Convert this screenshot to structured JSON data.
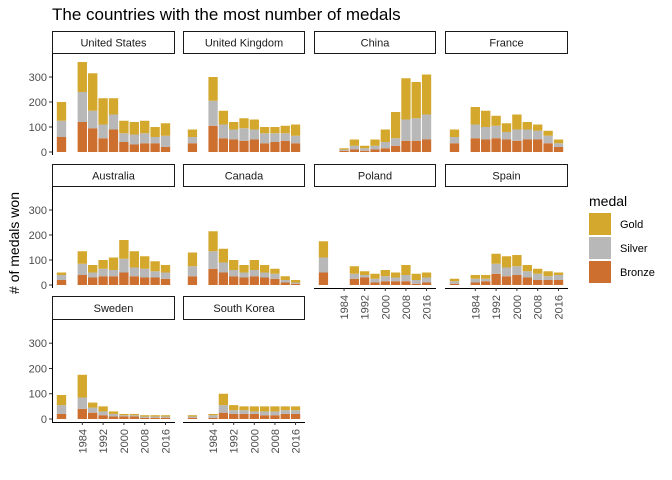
{
  "chart_data": {
    "type": "bar",
    "title": "The countries with the most number of medals",
    "xlabel": "",
    "ylabel": "# of medals won",
    "ylim": [
      0,
      380
    ],
    "y_ticks": [
      0,
      100,
      200,
      300
    ],
    "x": [
      1976,
      1980,
      1984,
      1988,
      1992,
      1996,
      2000,
      2004,
      2008,
      2012,
      2016
    ],
    "x_tick_labels": [
      "1984",
      "1992",
      "2000",
      "2008",
      "2016"
    ],
    "stack_order": [
      "Bronze",
      "Silver",
      "Gold"
    ],
    "legend": {
      "title": "medal",
      "position": "right",
      "entries": [
        {
          "label": "Gold",
          "color": "#d4a82c"
        },
        {
          "label": "Silver",
          "color": "#b8b8b8"
        },
        {
          "label": "Bronze",
          "color": "#cd6f2e"
        }
      ]
    },
    "grid": false,
    "facets": [
      {
        "name": "United States",
        "bronze": [
          60,
          0,
          120,
          95,
          55,
          90,
          40,
          30,
          35,
          35,
          20
        ],
        "silver": [
          65,
          0,
          120,
          70,
          55,
          60,
          35,
          40,
          40,
          25,
          45
        ],
        "gold": [
          75,
          0,
          120,
          150,
          105,
          65,
          50,
          50,
          50,
          40,
          50
        ]
      },
      {
        "name": "United Kingdom",
        "bronze": [
          35,
          0,
          105,
          55,
          50,
          45,
          50,
          35,
          40,
          45,
          35
        ],
        "silver": [
          25,
          0,
          100,
          55,
          40,
          50,
          40,
          40,
          35,
          30,
          30
        ],
        "gold": [
          30,
          0,
          95,
          55,
          30,
          40,
          40,
          25,
          25,
          30,
          45
        ]
      },
      {
        "name": "China",
        "bronze": [
          0,
          0,
          5,
          10,
          5,
          10,
          15,
          25,
          45,
          45,
          50
        ],
        "silver": [
          0,
          0,
          5,
          15,
          10,
          15,
          25,
          30,
          85,
          90,
          100
        ],
        "gold": [
          0,
          0,
          5,
          25,
          10,
          25,
          50,
          105,
          165,
          145,
          160
        ]
      },
      {
        "name": "France",
        "bronze": [
          35,
          0,
          55,
          50,
          55,
          50,
          45,
          50,
          50,
          35,
          20
        ],
        "silver": [
          25,
          0,
          55,
          50,
          50,
          30,
          45,
          40,
          35,
          30,
          15
        ],
        "gold": [
          30,
          0,
          70,
          65,
          40,
          35,
          60,
          30,
          25,
          20,
          15
        ]
      },
      {
        "name": "Australia",
        "bronze": [
          20,
          0,
          40,
          30,
          35,
          35,
          50,
          35,
          30,
          30,
          25
        ],
        "silver": [
          20,
          0,
          45,
          20,
          30,
          25,
          55,
          35,
          35,
          25,
          25
        ],
        "gold": [
          10,
          0,
          50,
          30,
          35,
          50,
          75,
          65,
          50,
          40,
          30
        ]
      },
      {
        "name": "Canada",
        "bronze": [
          35,
          0,
          65,
          50,
          35,
          30,
          35,
          30,
          25,
          10,
          5
        ],
        "silver": [
          40,
          0,
          70,
          40,
          25,
          20,
          25,
          20,
          20,
          10,
          5
        ],
        "gold": [
          55,
          0,
          80,
          55,
          40,
          30,
          40,
          30,
          20,
          15,
          10
        ]
      },
      {
        "name": "Poland",
        "bronze": [
          50,
          0,
          0,
          25,
          30,
          10,
          15,
          15,
          15,
          5,
          10
        ],
        "silver": [
          60,
          0,
          0,
          20,
          10,
          15,
          20,
          15,
          25,
          15,
          20
        ],
        "gold": [
          65,
          0,
          0,
          30,
          15,
          20,
          25,
          20,
          40,
          25,
          20
        ]
      },
      {
        "name": "Spain",
        "bronze": [
          5,
          0,
          10,
          15,
          45,
          35,
          40,
          30,
          20,
          20,
          20
        ],
        "silver": [
          10,
          0,
          15,
          10,
          40,
          35,
          35,
          25,
          25,
          15,
          20
        ],
        "gold": [
          10,
          0,
          15,
          15,
          40,
          45,
          45,
          25,
          20,
          20,
          10
        ]
      },
      {
        "name": "Sweden",
        "bronze": [
          20,
          0,
          40,
          25,
          15,
          10,
          10,
          10,
          5,
          5,
          5
        ],
        "silver": [
          35,
          0,
          45,
          20,
          15,
          10,
          5,
          5,
          5,
          5,
          5
        ],
        "gold": [
          40,
          0,
          90,
          20,
          20,
          10,
          5,
          5,
          5,
          5,
          5
        ]
      },
      {
        "name": "South Korea",
        "bronze": [
          5,
          0,
          5,
          25,
          20,
          20,
          20,
          15,
          15,
          20,
          20
        ],
        "silver": [
          5,
          0,
          10,
          30,
          15,
          15,
          10,
          15,
          15,
          15,
          15
        ],
        "gold": [
          5,
          0,
          5,
          45,
          20,
          15,
          20,
          20,
          20,
          15,
          15
        ]
      }
    ]
  }
}
